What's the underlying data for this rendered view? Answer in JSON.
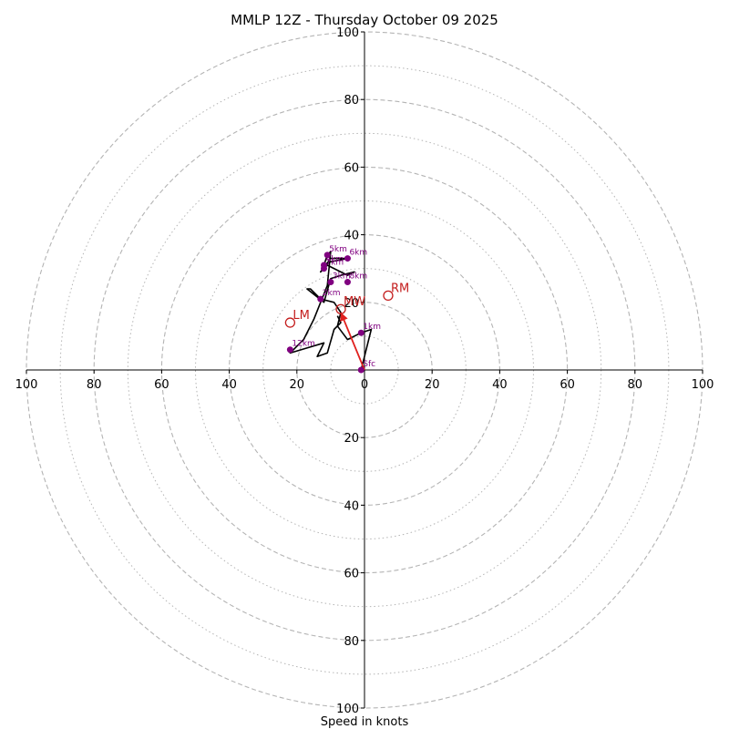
{
  "chart_data": {
    "type": "hodograph",
    "title": "MMLP 12Z - Thursday October 09 2025",
    "xlabel": "Speed in knots",
    "units": "knots",
    "max_speed": 100,
    "ring_major": [
      20,
      40,
      60,
      80,
      100
    ],
    "ring_minor": [
      10,
      30,
      50,
      70,
      90
    ],
    "x_tick_labels": [
      "100",
      "80",
      "60",
      "40",
      "20",
      "0",
      "20",
      "40",
      "60",
      "80",
      "100"
    ],
    "y_tick_labels_top": [
      "20",
      "40",
      "60",
      "80",
      "100"
    ],
    "y_tick_labels_bottom": [
      "20",
      "40",
      "60",
      "80",
      "100"
    ],
    "trace": [
      {
        "u": -1,
        "v": 0
      },
      {
        "u": 0,
        "v": 4
      },
      {
        "u": 2,
        "v": 12
      },
      {
        "u": -1,
        "v": 11
      },
      {
        "u": -5,
        "v": 9
      },
      {
        "u": -8,
        "v": 13
      },
      {
        "u": -7,
        "v": 17
      },
      {
        "u": -9,
        "v": 20
      },
      {
        "u": -13,
        "v": 21
      },
      {
        "u": -16,
        "v": 24
      },
      {
        "u": -17,
        "v": 24
      },
      {
        "u": -12,
        "v": 20
      },
      {
        "u": -10,
        "v": 27
      },
      {
        "u": -7,
        "v": 28
      },
      {
        "u": -3,
        "v": 29
      },
      {
        "u": -5,
        "v": 28
      },
      {
        "u": -11,
        "v": 31
      },
      {
        "u": -13,
        "v": 29
      },
      {
        "u": -10,
        "v": 33
      },
      {
        "u": -5,
        "v": 33
      },
      {
        "u": -10,
        "v": 32
      },
      {
        "u": -12,
        "v": 31
      },
      {
        "u": -11,
        "v": 34
      },
      {
        "u": -10,
        "v": 35
      },
      {
        "u": -11,
        "v": 25
      },
      {
        "u": -15,
        "v": 15
      },
      {
        "u": -18,
        "v": 9
      },
      {
        "u": -22,
        "v": 5
      },
      {
        "u": -12,
        "v": 8
      },
      {
        "u": -14,
        "v": 4
      },
      {
        "u": -11,
        "v": 5
      },
      {
        "u": -9,
        "v": 12
      },
      {
        "u": -7,
        "v": 14
      },
      {
        "u": -8,
        "v": 16
      }
    ],
    "height_markers": [
      {
        "label": "Sfc",
        "u": -1,
        "v": 0
      },
      {
        "label": "1km",
        "u": -1,
        "v": 11
      },
      {
        "label": "2km",
        "u": -13,
        "v": 21
      },
      {
        "label": "3km",
        "u": -10,
        "v": 26
      },
      {
        "label": "4km",
        "u": -12,
        "v": 31
      },
      {
        "label": "5km",
        "u": -11,
        "v": 34
      },
      {
        "label": "6km",
        "u": -5,
        "v": 33
      },
      {
        "label": "7km",
        "u": -12,
        "v": 30
      },
      {
        "label": "8km",
        "u": -5,
        "v": 26
      },
      {
        "label": "12km",
        "u": -22,
        "v": 6
      }
    ],
    "storm_motions": [
      {
        "label": "RM",
        "u": 7,
        "v": 22
      },
      {
        "label": "LM",
        "u": -22,
        "v": 14
      },
      {
        "label": "MW",
        "u": -7,
        "v": 18
      }
    ],
    "bunkers_vector": {
      "from": {
        "u": 0,
        "v": 0
      },
      "to": {
        "u": -7,
        "v": 17
      }
    },
    "colors": {
      "trace": "#000000",
      "markers": "#800080",
      "storm": "#c41e1e",
      "vector": "#e0201e",
      "grid": "#b4b4b4",
      "axes": "#000000"
    }
  }
}
